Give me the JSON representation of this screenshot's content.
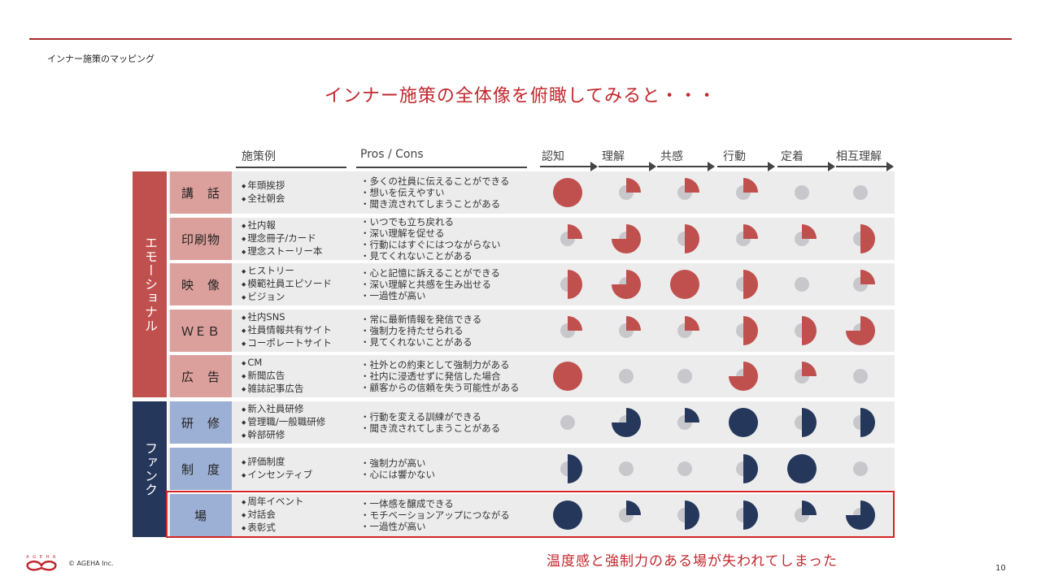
{
  "section_title": "インナー施策のマッピング",
  "headline": "インナー施策の全体像を俯瞰してみると・・・",
  "columns": {
    "examples": "施策例",
    "pros_cons": "Pros / Cons",
    "stages": [
      "認知",
      "理解",
      "共感",
      "行動",
      "定着",
      "相互理解"
    ]
  },
  "groups": [
    {
      "label": "エモーショナル",
      "color": "#c0504d"
    },
    {
      "label": "ファンクショナル",
      "color": "#25375a"
    }
  ],
  "rows": [
    {
      "label": "講　話",
      "group": 0,
      "examples": [
        "年頭挨拶",
        "全社朝会"
      ],
      "pros_cons": [
        "多くの社員に伝えることができる",
        "想いを伝えやすい",
        "聞き流されてしまうことがある"
      ],
      "levels": [
        1,
        0.25,
        0.25,
        0.25,
        0,
        0
      ]
    },
    {
      "label": "印刷物",
      "group": 0,
      "examples": [
        "社内報",
        "理念冊子/カード",
        "理念ストーリー本"
      ],
      "pros_cons": [
        "いつでも立ち戻れる",
        "深い理解を促せる",
        "行動にはすぐにはつながらない",
        "見てくれないことがある"
      ],
      "levels": [
        0.25,
        0.75,
        0.5,
        0.25,
        0.25,
        0.5
      ]
    },
    {
      "label": "映　像",
      "group": 0,
      "examples": [
        "ヒストリー",
        "模範社員エピソード",
        "ビジョン"
      ],
      "pros_cons": [
        "心と記憶に訴えることができる",
        "深い理解と共感を生み出せる",
        "一過性が高い"
      ],
      "levels": [
        0.5,
        0.75,
        1,
        0.5,
        0,
        0.25
      ]
    },
    {
      "label": "ＷＥＢ",
      "group": 0,
      "examples": [
        "社内SNS",
        "社員情報共有サイト",
        "コーポレートサイト"
      ],
      "pros_cons": [
        "常に最新情報を発信できる",
        "強制力を持たせられる",
        "見てくれないことがある"
      ],
      "levels": [
        0.25,
        0.25,
        0.25,
        0.5,
        0.5,
        0.75
      ]
    },
    {
      "label": "広　告",
      "group": 0,
      "examples": [
        "CM",
        "新聞広告",
        "雑誌記事広告"
      ],
      "pros_cons": [
        "社外との約束として強制力がある",
        "社内に浸透せずに発信した場合",
        "顧客からの信頼を失う可能性がある"
      ],
      "levels": [
        1,
        0,
        0,
        0.75,
        0.25,
        0
      ]
    },
    {
      "label": "研　修",
      "group": 1,
      "examples": [
        "新入社員研修",
        "管理職/一般職研修",
        "幹部研修"
      ],
      "pros_cons": [
        "行動を変える訓練ができる",
        "聞き流されてしまうことがある"
      ],
      "levels": [
        0,
        0.75,
        0.25,
        1,
        0.5,
        0.5
      ]
    },
    {
      "label": "制　度",
      "group": 1,
      "examples": [
        "評価制度",
        "インセンティブ"
      ],
      "pros_cons": [
        "強制力が高い",
        "心には響かない"
      ],
      "levels": [
        0.5,
        0,
        0,
        0.5,
        1,
        0
      ]
    },
    {
      "label": "場",
      "group": 1,
      "examples": [
        "周年イベント",
        "対話会",
        "表彰式"
      ],
      "pros_cons": [
        "一体感を醸成できる",
        "モチベーションアップにつながる",
        "一過性が高い"
      ],
      "levels": [
        1,
        0.25,
        0.5,
        0.5,
        0.25,
        0.75
      ]
    }
  ],
  "note": "温度感と強制力のある場が失われてしまった",
  "logo_text": "AGEHA",
  "copyright": "© AGEHA Inc.",
  "page_number": "10",
  "colors": {
    "accent": "#c0282e",
    "emotional": "#c0504d",
    "functional": "#25375a",
    "empty": "#c8c8cc"
  }
}
